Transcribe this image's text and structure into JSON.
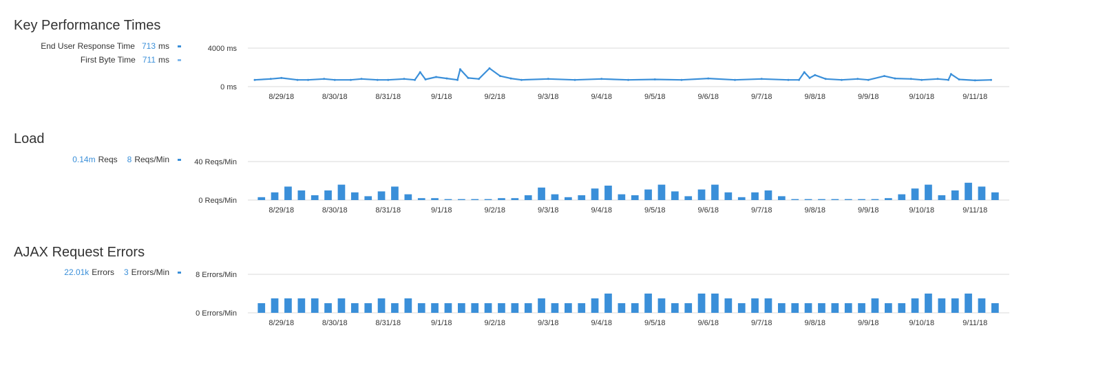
{
  "sections": [
    {
      "title": "Key Performance Times",
      "legend": [
        {
          "label": "End User Response Time",
          "value": "713",
          "unit": "ms"
        },
        {
          "label": "First Byte Time",
          "value": "711",
          "unit": "ms"
        }
      ]
    },
    {
      "title": "Load",
      "legend": [
        {
          "value": "0.14m",
          "unit": "Reqs"
        },
        {
          "value": "8",
          "unit": "Reqs/Min"
        }
      ]
    },
    {
      "title": "AJAX Request Errors",
      "legend": [
        {
          "value": "22.01k",
          "unit": "Errors"
        },
        {
          "value": "3",
          "unit": "Errors/Min"
        }
      ]
    }
  ],
  "colors": {
    "series": "#3a8fd9",
    "series_light": "#7fb8ec",
    "grid": "#d8d8d8"
  },
  "chart_data": [
    {
      "type": "line",
      "title": "Key Performance Times",
      "x_tick_labels": [
        "8/29/18",
        "8/30/18",
        "8/31/18",
        "9/1/18",
        "9/2/18",
        "9/3/18",
        "9/4/18",
        "9/5/18",
        "9/6/18",
        "9/7/18",
        "9/8/18",
        "9/9/18",
        "9/10/18",
        "9/11/18"
      ],
      "y_tick_labels": [
        "4000 ms",
        "0 ms"
      ],
      "ylim": [
        0,
        4000
      ],
      "xlim": [
        0,
        14
      ],
      "grid": true,
      "series": [
        {
          "name": "End User Response Time",
          "x": [
            0,
            0.3,
            0.5,
            0.8,
            1,
            1.3,
            1.5,
            1.8,
            2,
            2.3,
            2.5,
            2.8,
            3,
            3.1,
            3.2,
            3.4,
            3.6,
            3.8,
            3.85,
            4,
            4.2,
            4.4,
            4.6,
            4.8,
            5,
            5.5,
            6,
            6.5,
            7,
            7.5,
            8,
            8.5,
            9,
            9.5,
            10,
            10.2,
            10.3,
            10.4,
            10.5,
            10.7,
            11,
            11.3,
            11.5,
            11.8,
            12,
            12.3,
            12.5,
            12.8,
            13,
            13.05,
            13.2,
            13.5,
            13.8
          ],
          "y": [
            700,
            800,
            900,
            700,
            700,
            800,
            700,
            700,
            800,
            700,
            700,
            800,
            700,
            1500,
            750,
            1000,
            850,
            700,
            1800,
            900,
            800,
            1900,
            1100,
            850,
            700,
            800,
            700,
            800,
            700,
            750,
            700,
            850,
            700,
            800,
            700,
            700,
            1500,
            900,
            1200,
            800,
            700,
            800,
            700,
            1100,
            850,
            800,
            700,
            800,
            700,
            1300,
            750,
            650,
            700
          ]
        }
      ]
    },
    {
      "type": "bar",
      "title": "Load",
      "x_tick_labels": [
        "8/29/18",
        "8/30/18",
        "8/31/18",
        "9/1/18",
        "9/2/18",
        "9/3/18",
        "9/4/18",
        "9/5/18",
        "9/6/18",
        "9/7/18",
        "9/8/18",
        "9/9/18",
        "9/10/18",
        "9/11/18"
      ],
      "y_tick_labels": [
        "40 Reqs/Min",
        "0 Reqs/Min"
      ],
      "ylim": [
        0,
        40
      ],
      "xlim": [
        0,
        14
      ],
      "grid": true,
      "series": [
        {
          "name": "Reqs/Min",
          "x": [
            0,
            0.25,
            0.5,
            0.75,
            1,
            1.25,
            1.5,
            1.75,
            2,
            2.25,
            2.5,
            2.75,
            3,
            3.25,
            3.5,
            3.75,
            4,
            4.25,
            4.5,
            4.75,
            5,
            5.25,
            5.5,
            5.75,
            6,
            6.25,
            6.5,
            6.75,
            7,
            7.25,
            7.5,
            7.75,
            8,
            8.25,
            8.5,
            8.75,
            9,
            9.25,
            9.5,
            9.75,
            10,
            10.25,
            10.5,
            10.75,
            11,
            11.25,
            11.5,
            11.75,
            12,
            12.25,
            12.5,
            12.75,
            13,
            13.25,
            13.5,
            13.75
          ],
          "y": [
            3,
            8,
            14,
            10,
            5,
            10,
            16,
            8,
            4,
            9,
            14,
            6,
            2,
            2,
            1,
            1,
            1,
            1,
            2,
            2,
            5,
            13,
            6,
            3,
            5,
            12,
            15,
            6,
            5,
            11,
            16,
            9,
            4,
            11,
            16,
            8,
            3,
            8,
            10,
            4,
            1,
            1,
            1,
            1,
            1,
            1,
            1,
            2,
            6,
            12,
            16,
            5,
            10,
            18,
            14,
            8
          ]
        }
      ]
    },
    {
      "type": "bar",
      "title": "AJAX Request Errors",
      "x_tick_labels": [
        "8/29/18",
        "8/30/18",
        "8/31/18",
        "9/1/18",
        "9/2/18",
        "9/3/18",
        "9/4/18",
        "9/5/18",
        "9/6/18",
        "9/7/18",
        "9/8/18",
        "9/9/18",
        "9/10/18",
        "9/11/18"
      ],
      "y_tick_labels": [
        "8 Errors/Min",
        "0 Errors/Min"
      ],
      "ylim": [
        0,
        8
      ],
      "xlim": [
        0,
        14
      ],
      "grid": true,
      "series": [
        {
          "name": "Errors/Min",
          "x": [
            0,
            0.25,
            0.5,
            0.75,
            1,
            1.25,
            1.5,
            1.75,
            2,
            2.25,
            2.5,
            2.75,
            3,
            3.25,
            3.5,
            3.75,
            4,
            4.25,
            4.5,
            4.75,
            5,
            5.25,
            5.5,
            5.75,
            6,
            6.25,
            6.5,
            6.75,
            7,
            7.25,
            7.5,
            7.75,
            8,
            8.25,
            8.5,
            8.75,
            9,
            9.25,
            9.5,
            9.75,
            10,
            10.25,
            10.5,
            10.75,
            11,
            11.25,
            11.5,
            11.75,
            12,
            12.25,
            12.5,
            12.75,
            13,
            13.25,
            13.5,
            13.75
          ],
          "y": [
            2,
            3,
            3,
            3,
            3,
            2,
            3,
            2,
            2,
            3,
            2,
            3,
            2,
            2,
            2,
            2,
            2,
            2,
            2,
            2,
            2,
            3,
            2,
            2,
            2,
            3,
            4,
            2,
            2,
            4,
            3,
            2,
            2,
            4,
            4,
            3,
            2,
            3,
            3,
            2,
            2,
            2,
            2,
            2,
            2,
            2,
            3,
            2,
            2,
            3,
            4,
            3,
            3,
            4,
            3,
            2
          ]
        }
      ]
    }
  ]
}
